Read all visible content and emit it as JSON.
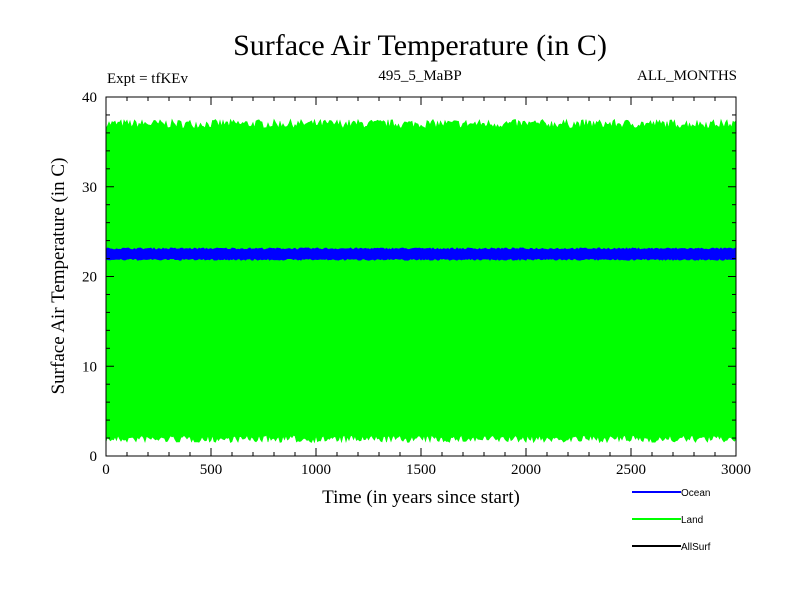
{
  "chart_data": {
    "type": "line",
    "title": "Surface Air Temperature (in C)",
    "subtitle_left": "Expt = tfKEv",
    "subtitle_center": "495_5_MaBP",
    "subtitle_right": "ALL_MONTHS",
    "xlabel": "Time (in years since start)",
    "ylabel": "Surface Air Temperature (in C)",
    "xlim": [
      0,
      3000
    ],
    "ylim": [
      0,
      40
    ],
    "xticks": [
      0,
      500,
      1000,
      1500,
      2000,
      2500,
      3000
    ],
    "yticks": [
      0,
      10,
      20,
      30,
      40
    ],
    "grid": false,
    "legend_position": "bottom-right",
    "series": [
      {
        "name": "Ocean",
        "color": "#0000ff",
        "band": {
          "low": 22.0,
          "high": 23.0,
          "min": 21.8,
          "max": 23.2
        }
      },
      {
        "name": "Land",
        "color": "#00ff00",
        "band": {
          "low": 2.3,
          "high": 36.5,
          "min": 1.5,
          "max": 37.5
        }
      },
      {
        "name": "AllSurf",
        "color": "#000000"
      }
    ]
  }
}
